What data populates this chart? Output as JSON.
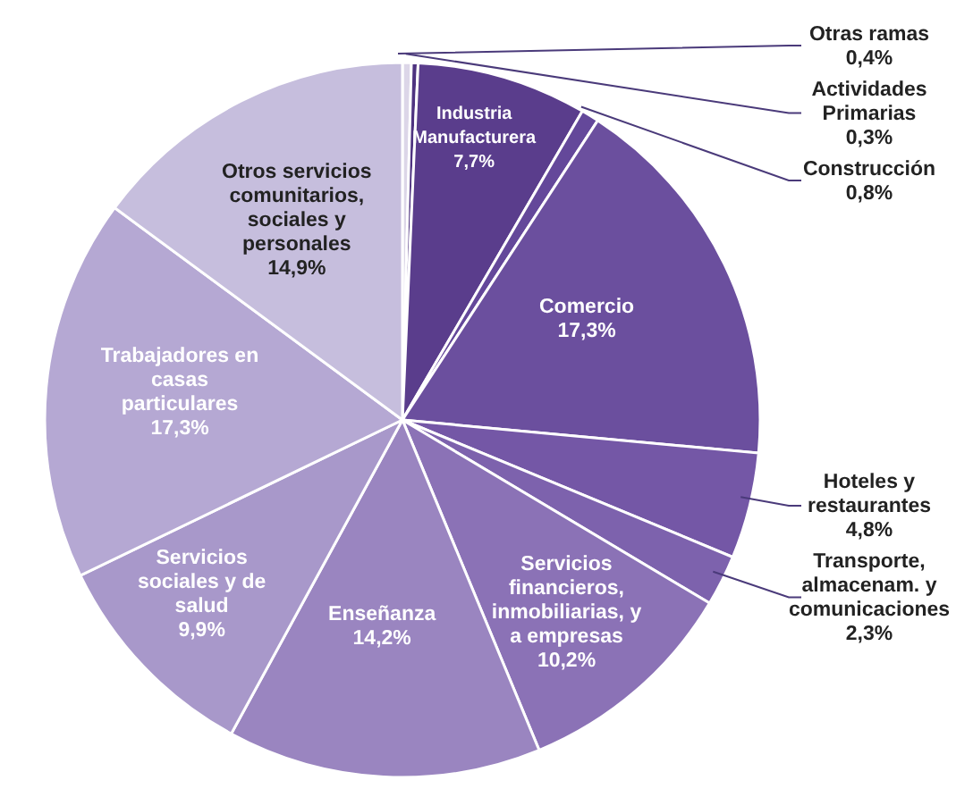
{
  "chart_data": {
    "type": "pie",
    "categories": [
      "Otras ramas",
      "Actividades Primarias",
      "Industria Manufacturera",
      "Construcción",
      "Comercio",
      "Hoteles y restaurantes",
      "Transporte, almacenam. y comunicaciones",
      "Servicios financieros, inmobiliarias, y a empresas",
      "Enseñanza",
      "Servicios sociales y de salud",
      "Trabajadores en casas particulares",
      "Otros servicios comunitarios, sociales y personales"
    ],
    "values": [
      0.4,
      0.3,
      7.7,
      0.8,
      17.3,
      4.8,
      2.3,
      10.2,
      14.2,
      9.9,
      17.3,
      14.9
    ],
    "value_labels": [
      "0,4%",
      "0,3%",
      "7,7%",
      "0,8%",
      "17,3%",
      "4,8%",
      "2,3%",
      "10,2%",
      "14,2%",
      "9,9%",
      "17,3%",
      "14,9%"
    ],
    "colors": [
      "#dcd6e8",
      "#4e3380",
      "#5a3d8c",
      "#64489a",
      "#6b4f9e",
      "#7457a6",
      "#7d62ad",
      "#8b72b6",
      "#9a85c0",
      "#a898ca",
      "#b5a8d3",
      "#c6bedd"
    ]
  }
}
